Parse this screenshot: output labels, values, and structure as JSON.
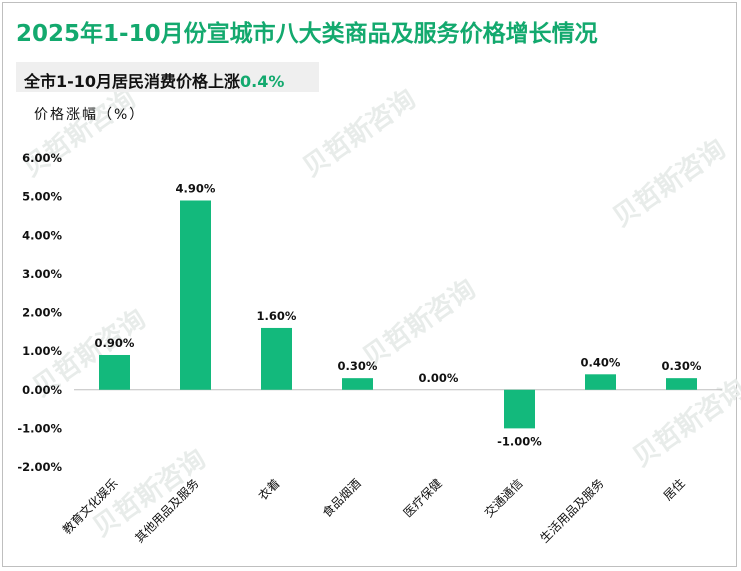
{
  "title": "2025年1-10月份宣城市八大类商品及服务价格增长情况",
  "subtitle": {
    "prefix": "全市1-10月居民消费价格上涨",
    "value": "0.4%"
  },
  "watermark": "贝哲斯咨询",
  "colors": {
    "accent": "#13a96e",
    "bar": "#13b97c",
    "axis": "#bfbfbf"
  },
  "chart_data": {
    "type": "bar",
    "ylabel": "价格涨幅（%）",
    "categories": [
      "教育文化娱乐",
      "其他用品及服务",
      "衣着",
      "食品烟酒",
      "医疗保健",
      "交通通信",
      "生活用品及服务",
      "居住"
    ],
    "values": [
      0.9,
      4.9,
      1.6,
      0.3,
      0.0,
      -1.0,
      0.4,
      0.3
    ],
    "value_labels": [
      "0.90%",
      "4.90%",
      "1.60%",
      "0.30%",
      "0.00%",
      "-1.00%",
      "0.40%",
      "0.30%"
    ],
    "yticks": [
      6.0,
      5.0,
      4.0,
      3.0,
      2.0,
      1.0,
      0.0,
      -1.0,
      -2.0
    ],
    "ytick_labels": [
      "6.00%",
      "5.00%",
      "4.00%",
      "3.00%",
      "2.00%",
      "1.00%",
      "0.00%",
      "-1.00%",
      "-2.00%"
    ],
    "ylim": [
      -2.0,
      6.0
    ],
    "grid": false,
    "legend": "none"
  }
}
